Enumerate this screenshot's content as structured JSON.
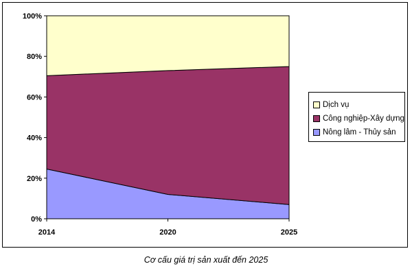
{
  "chart_data": {
    "type": "area",
    "stacked": "percent",
    "x": [
      "2014",
      "2020",
      "2025"
    ],
    "series": [
      {
        "name": "Nông lâm - Thủy sản",
        "values": [
          24.5,
          12,
          7
        ],
        "color": "#9999ff"
      },
      {
        "name": "Công nghiệp-Xây dựng",
        "values": [
          46,
          61,
          68
        ],
        "color": "#993366"
      },
      {
        "name": "Dịch vụ",
        "values": [
          29.5,
          27,
          25
        ],
        "color": "#ffffcc"
      }
    ],
    "legend_order": [
      "Dịch vụ",
      "Công nghiệp-Xây dựng",
      "Nông lâm - Thủy sản"
    ],
    "y_ticks": [
      "0%",
      "20%",
      "40%",
      "60%",
      "80%",
      "100%"
    ],
    "ylim": [
      0,
      100
    ],
    "grid": false,
    "legend_position": "right",
    "caption": "Cơ cấu giá trị sản xuất đến 2025"
  }
}
